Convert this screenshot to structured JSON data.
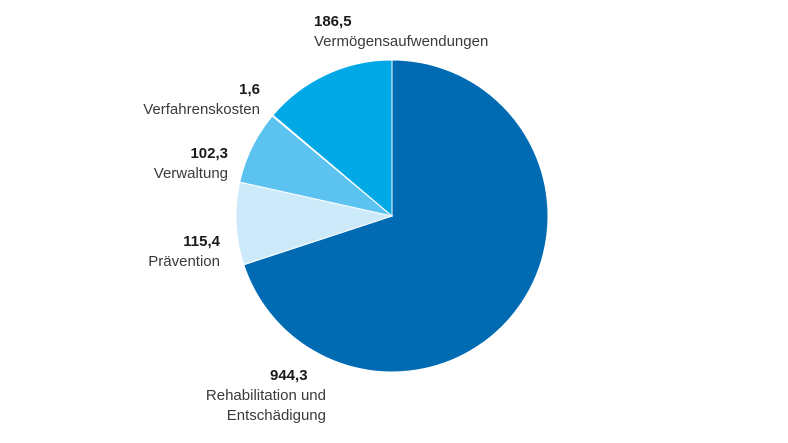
{
  "chart_data": {
    "type": "pie",
    "title": "",
    "slices": [
      {
        "value_label": "944,3",
        "value": 944.3,
        "name_lines": [
          "Rehabilitation und",
          "Entschädigung"
        ],
        "color": "#006ab3"
      },
      {
        "value_label": "115,4",
        "value": 115.4,
        "name_lines": [
          "Prävention"
        ],
        "color": "#cdeafb"
      },
      {
        "value_label": "102,3",
        "value": 102.3,
        "name_lines": [
          "Verwaltung"
        ],
        "color": "#5cc3f0"
      },
      {
        "value_label": "1,6",
        "value": 1.6,
        "name_lines": [
          "Verfahrenskosten"
        ],
        "color": "#0b3d7a"
      },
      {
        "value_label": "186,5",
        "value": 186.5,
        "name_lines": [
          "Vermögensaufwendungen"
        ],
        "color": "#00a9e6"
      }
    ]
  }
}
